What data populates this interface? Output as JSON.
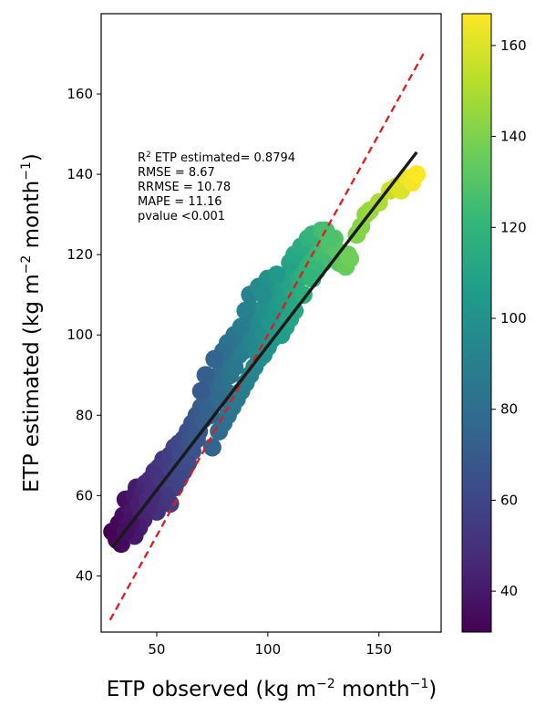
{
  "chart_data": {
    "type": "scatter",
    "xlabel": {
      "text": "ETP observed (kg m",
      "sup1": "−2",
      "mid": " month",
      "sup2": "−1",
      "end": ")"
    },
    "ylabel": {
      "text": "ETP estimated (kg m",
      "sup1": "−2",
      "mid": " month",
      "sup2": "−1",
      "end": ")"
    },
    "xlim": [
      25,
      178
    ],
    "ylim": [
      26,
      180
    ],
    "x_ticks": [
      50,
      100,
      150
    ],
    "y_ticks": [
      40,
      60,
      80,
      100,
      120,
      140,
      160
    ],
    "grid": false,
    "colorbar": {
      "colormap": "viridis",
      "range": [
        31,
        167
      ],
      "ticks": [
        40,
        60,
        80,
        100,
        120,
        140,
        160
      ],
      "stops": [
        "#440154",
        "#482878",
        "#3e4989",
        "#31688e",
        "#26828e",
        "#1f9e89",
        "#35b779",
        "#6ece58",
        "#b5de2b",
        "#fde725"
      ]
    },
    "stats": {
      "r2_prefix": "R",
      "r2_sup": "2",
      "r2_text": " ETP estimated= 0.8794",
      "rmse": "RMSE = 8.67",
      "rrmse": "RRMSE = 10.78",
      "mape": "MAPE = 11.16",
      "pvalue": "pvalue <0.001"
    },
    "fit_line": {
      "x": [
        30,
        167
      ],
      "y": [
        47,
        145.5
      ],
      "color": "#1a1a1a"
    },
    "one_to_one_line": {
      "x": [
        29,
        170
      ],
      "y": [
        29,
        170
      ],
      "color": "#e31a1c",
      "style": "dashed"
    },
    "points": [
      [
        30,
        51
      ],
      [
        32,
        49
      ],
      [
        34,
        48
      ],
      [
        33,
        53
      ],
      [
        35,
        55
      ],
      [
        37,
        52
      ],
      [
        38,
        57
      ],
      [
        36,
        59
      ],
      [
        39,
        56
      ],
      [
        40,
        60
      ],
      [
        42,
        58
      ],
      [
        41,
        62
      ],
      [
        43,
        55
      ],
      [
        44,
        61
      ],
      [
        45,
        63
      ],
      [
        46,
        59
      ],
      [
        47,
        64
      ],
      [
        48,
        62
      ],
      [
        49,
        66
      ],
      [
        50,
        61
      ],
      [
        51,
        67
      ],
      [
        52,
        64
      ],
      [
        53,
        69
      ],
      [
        54,
        62
      ],
      [
        55,
        68
      ],
      [
        56,
        70
      ],
      [
        57,
        66
      ],
      [
        58,
        72
      ],
      [
        59,
        67
      ],
      [
        60,
        73
      ],
      [
        61,
        70
      ],
      [
        62,
        74
      ],
      [
        63,
        69
      ],
      [
        64,
        76
      ],
      [
        65,
        73
      ],
      [
        66,
        78
      ],
      [
        67,
        75
      ],
      [
        68,
        80
      ],
      [
        69,
        76
      ],
      [
        70,
        82
      ],
      [
        71,
        79
      ],
      [
        72,
        84
      ],
      [
        73,
        81
      ],
      [
        74,
        86
      ],
      [
        75,
        83
      ],
      [
        76,
        88
      ],
      [
        77,
        85
      ],
      [
        78,
        90
      ],
      [
        79,
        87
      ],
      [
        80,
        92
      ],
      [
        81,
        86
      ],
      [
        82,
        94
      ],
      [
        83,
        90
      ],
      [
        84,
        96
      ],
      [
        85,
        92
      ],
      [
        86,
        98
      ],
      [
        87,
        95
      ],
      [
        88,
        100
      ],
      [
        89,
        96
      ],
      [
        90,
        102
      ],
      [
        91,
        98
      ],
      [
        92,
        104
      ],
      [
        93,
        99
      ],
      [
        94,
        106
      ],
      [
        95,
        101
      ],
      [
        96,
        103
      ],
      [
        97,
        105
      ],
      [
        98,
        100
      ],
      [
        99,
        107
      ],
      [
        100,
        104
      ],
      [
        101,
        109
      ],
      [
        102,
        103
      ],
      [
        103,
        111
      ],
      [
        104,
        106
      ],
      [
        105,
        110
      ],
      [
        106,
        108
      ],
      [
        107,
        113
      ],
      [
        108,
        109
      ],
      [
        109,
        115
      ],
      [
        110,
        112
      ],
      [
        111,
        116
      ],
      [
        112,
        110
      ],
      [
        113,
        118
      ],
      [
        114,
        114
      ],
      [
        115,
        119
      ],
      [
        116,
        115
      ],
      [
        117,
        121
      ],
      [
        118,
        117
      ],
      [
        119,
        120
      ],
      [
        120,
        122
      ],
      [
        121,
        118
      ],
      [
        122,
        124
      ],
      [
        123,
        119
      ],
      [
        124,
        121
      ],
      [
        125,
        123
      ],
      [
        126,
        120
      ],
      [
        127,
        124
      ],
      [
        128,
        122
      ],
      [
        130,
        124
      ],
      [
        132,
        118
      ],
      [
        134,
        119
      ],
      [
        131,
        121
      ],
      [
        135,
        117
      ],
      [
        136,
        120
      ],
      [
        137,
        119
      ],
      [
        140,
        125
      ],
      [
        142,
        127
      ],
      [
        144,
        130
      ],
      [
        146,
        131
      ],
      [
        150,
        133
      ],
      [
        155,
        136
      ],
      [
        158,
        137
      ],
      [
        160,
        136
      ],
      [
        163,
        139
      ],
      [
        165,
        138
      ],
      [
        167,
        140
      ],
      [
        75,
        72
      ],
      [
        78,
        76
      ],
      [
        80,
        78
      ],
      [
        82,
        80
      ],
      [
        84,
        82
      ],
      [
        86,
        84
      ],
      [
        88,
        86
      ],
      [
        90,
        88
      ],
      [
        92,
        90
      ],
      [
        94,
        92
      ],
      [
        96,
        94
      ],
      [
        85,
        100
      ],
      [
        82,
        98
      ],
      [
        80,
        96
      ],
      [
        88,
        102
      ],
      [
        90,
        106
      ],
      [
        95,
        96
      ],
      [
        98,
        95
      ],
      [
        100,
        97
      ],
      [
        102,
        99
      ],
      [
        104,
        101
      ],
      [
        106,
        100
      ],
      [
        108,
        102
      ],
      [
        72,
        90
      ],
      [
        70,
        86
      ],
      [
        74,
        80
      ],
      [
        76,
        94
      ],
      [
        78,
        84
      ],
      [
        68,
        74
      ],
      [
        66,
        71
      ],
      [
        64,
        68
      ],
      [
        62,
        66
      ],
      [
        60,
        64
      ],
      [
        58,
        62
      ],
      [
        56,
        58
      ],
      [
        54,
        60
      ],
      [
        52,
        58
      ],
      [
        50,
        56
      ],
      [
        48,
        60
      ],
      [
        46,
        57
      ],
      [
        44,
        54
      ],
      [
        42,
        52
      ],
      [
        40,
        50
      ],
      [
        38,
        53
      ],
      [
        36,
        51
      ],
      [
        92,
        110
      ],
      [
        96,
        112
      ],
      [
        100,
        114
      ],
      [
        98,
        110
      ],
      [
        104,
        115
      ],
      [
        110,
        118
      ],
      [
        112,
        120
      ],
      [
        115,
        122
      ],
      [
        118,
        124
      ],
      [
        120,
        125
      ],
      [
        124,
        126
      ],
      [
        126,
        126
      ],
      [
        128,
        124
      ],
      [
        125,
        118
      ],
      [
        122,
        116
      ],
      [
        120,
        114
      ],
      [
        116,
        110
      ],
      [
        112,
        106
      ],
      [
        110,
        104
      ]
    ]
  }
}
